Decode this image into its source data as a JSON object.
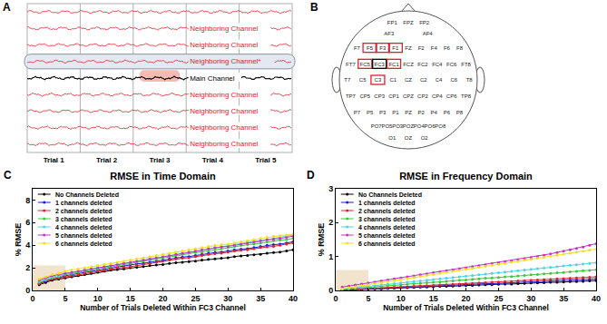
{
  "panel_a": {
    "panel": "A",
    "trials": [
      "Trial 1",
      "Trial 2",
      "Trial 3",
      "Trial 4",
      "Trial 5"
    ],
    "channels": [
      {
        "label": "Neighboring Channel",
        "role": "neighbor"
      },
      {
        "label": "Neighboring Channel",
        "role": "neighbor"
      },
      {
        "label": "Neighboring Channel*",
        "role": "neighbor",
        "selected": true
      },
      {
        "label": "Main Channel",
        "role": "main"
      },
      {
        "label": "Neighboring Channel",
        "role": "neighbor"
      },
      {
        "label": "Neighboring Channel",
        "role": "neighbor"
      },
      {
        "label": "Neighboring Channel",
        "role": "neighbor"
      },
      {
        "label": "Neighboring Channel",
        "role": "neighbor"
      }
    ],
    "deleted_trial": "Trial 3"
  },
  "panel_b": {
    "panel": "B",
    "electrodes": [
      [
        "FP1",
        "FPZ",
        "FP2"
      ],
      [
        "AF3",
        "AF4"
      ],
      [
        "F7",
        "F5",
        "F3",
        "F1",
        "FZ",
        "F2",
        "F4",
        "F6",
        "F8"
      ],
      [
        "FT7",
        "FC5",
        "FC3",
        "FC1",
        "FCZ",
        "FC2",
        "FC4",
        "FC6",
        "FT8"
      ],
      [
        "T7",
        "C5",
        "C3",
        "C1",
        "CZ",
        "C2",
        "C4",
        "C6",
        "T8"
      ],
      [
        "TP7",
        "CP5",
        "CP3",
        "CP1",
        "CPZ",
        "CP2",
        "CP4",
        "CP6",
        "TP8"
      ],
      [
        "P7",
        "P5",
        "P3",
        "P1",
        "PZ",
        "P2",
        "P4",
        "P6",
        "P8"
      ],
      [
        "PO7",
        "PO5",
        "PO3",
        "POZ",
        "PO4",
        "PO6",
        "PO8"
      ],
      [
        "O1",
        "OZ",
        "O2"
      ]
    ],
    "main": "FC3",
    "neighbors": [
      "F5",
      "F3",
      "F1",
      "FC5",
      "FC1",
      "C3"
    ]
  },
  "chart_data": [
    {
      "type": "line",
      "panel": "C",
      "title": "RMSE in Time Domain",
      "x_label": "Number of Trials Deleted Within FC3 Channel",
      "y_label": "% RMSE",
      "x": [
        1,
        2,
        3,
        4,
        5,
        6,
        7,
        8,
        9,
        10,
        11,
        12,
        13,
        14,
        15,
        16,
        17,
        18,
        19,
        20,
        21,
        22,
        23,
        24,
        25,
        26,
        27,
        28,
        29,
        30,
        31,
        32,
        33,
        34,
        35,
        36,
        37,
        38,
        39,
        40
      ],
      "xlim": [
        0,
        40
      ],
      "xticks": [
        0,
        5,
        10,
        15,
        20,
        25,
        30,
        35,
        40
      ],
      "ylim": [
        0,
        9
      ],
      "yticks": [
        0,
        2,
        4,
        6,
        8
      ],
      "grid": false,
      "legend": "upper left",
      "marker": "circle",
      "line_style": "solid",
      "highlight": {
        "x": [
          0,
          5
        ],
        "y": [
          0,
          2.2
        ],
        "color": "#f1e3cc"
      },
      "series": [
        {
          "name": "No Channels Deleted",
          "color": "#000000",
          "values": [
            0.5,
            0.7,
            0.9,
            1.0,
            1.1,
            1.2,
            1.3,
            1.4,
            1.5,
            1.6,
            1.7,
            1.8,
            1.85,
            1.9,
            2.0,
            2.05,
            2.1,
            2.2,
            2.25,
            2.3,
            2.4,
            2.45,
            2.5,
            2.55,
            2.6,
            2.7,
            2.75,
            2.8,
            2.85,
            2.9,
            3.0,
            3.05,
            3.1,
            3.15,
            3.2,
            3.3,
            3.35,
            3.4,
            3.5,
            3.6
          ]
        },
        {
          "name": "1 channels deleted",
          "color": "#1a1ad6",
          "values": [
            0.6,
            0.8,
            1.0,
            1.1,
            1.3,
            1.4,
            1.5,
            1.6,
            1.7,
            1.8,
            1.9,
            2.0,
            2.1,
            2.2,
            2.3,
            2.35,
            2.4,
            2.5,
            2.6,
            2.7,
            2.8,
            2.9,
            2.95,
            3.0,
            3.1,
            3.2,
            3.3,
            3.35,
            3.4,
            3.5,
            3.6,
            3.65,
            3.7,
            3.8,
            3.9,
            4.0,
            4.05,
            4.1,
            4.2,
            4.3
          ]
        },
        {
          "name": "2 channels deleted",
          "color": "#e0202a",
          "values": [
            0.6,
            0.9,
            1.0,
            1.1,
            1.2,
            1.3,
            1.4,
            1.5,
            1.6,
            1.7,
            1.8,
            1.9,
            2.0,
            2.05,
            2.1,
            2.2,
            2.3,
            2.4,
            2.5,
            2.6,
            2.7,
            2.8,
            2.85,
            2.9,
            3.0,
            3.1,
            3.2,
            3.25,
            3.3,
            3.4,
            3.5,
            3.55,
            3.6,
            3.7,
            3.8,
            3.85,
            3.9,
            4.0,
            4.1,
            4.2
          ]
        },
        {
          "name": "3 channels deleted",
          "color": "#3cc83c",
          "values": [
            0.7,
            0.9,
            1.1,
            1.2,
            1.4,
            1.5,
            1.6,
            1.7,
            1.8,
            1.9,
            2.0,
            2.1,
            2.2,
            2.3,
            2.4,
            2.5,
            2.6,
            2.7,
            2.8,
            2.9,
            3.0,
            3.1,
            3.2,
            3.3,
            3.35,
            3.4,
            3.5,
            3.6,
            3.7,
            3.8,
            3.9,
            4.0,
            4.05,
            4.1,
            4.2,
            4.3,
            4.4,
            4.45,
            4.5,
            4.6
          ]
        },
        {
          "name": "4 channels deleted",
          "color": "#4fd3e6",
          "values": [
            0.8,
            1.0,
            1.2,
            1.3,
            1.5,
            1.6,
            1.7,
            1.8,
            1.9,
            2.0,
            2.1,
            2.2,
            2.3,
            2.4,
            2.5,
            2.6,
            2.7,
            2.8,
            2.9,
            3.0,
            3.1,
            3.2,
            3.3,
            3.4,
            3.5,
            3.6,
            3.7,
            3.8,
            3.9,
            4.0,
            4.1,
            4.2,
            4.3,
            4.35,
            4.4,
            4.5,
            4.6,
            4.7,
            4.8,
            4.9
          ]
        },
        {
          "name": "5 channels deleted",
          "color": "#c433c4",
          "values": [
            0.9,
            1.1,
            1.3,
            1.4,
            1.5,
            1.6,
            1.7,
            1.8,
            1.9,
            2.0,
            2.1,
            2.2,
            2.3,
            2.4,
            2.5,
            2.6,
            2.7,
            2.8,
            2.9,
            3.0,
            3.1,
            3.2,
            3.3,
            3.4,
            3.5,
            3.6,
            3.7,
            3.8,
            3.85,
            3.9,
            4.0,
            4.1,
            4.2,
            4.3,
            4.4,
            4.5,
            4.55,
            4.6,
            4.7,
            4.8
          ]
        },
        {
          "name": "6 channels deleted",
          "color": "#f2e01c",
          "values": [
            1.0,
            1.2,
            1.4,
            1.5,
            1.7,
            1.8,
            1.9,
            2.0,
            2.1,
            2.2,
            2.3,
            2.4,
            2.5,
            2.6,
            2.7,
            2.8,
            2.9,
            3.0,
            3.1,
            3.2,
            3.3,
            3.4,
            3.5,
            3.6,
            3.7,
            3.8,
            3.9,
            4.0,
            4.05,
            4.1,
            4.2,
            4.3,
            4.4,
            4.5,
            4.6,
            4.7,
            4.8,
            4.85,
            4.9,
            5.0
          ]
        }
      ]
    },
    {
      "type": "line",
      "panel": "D",
      "title": "RMSE in Frequency Domain",
      "x_label": "Number of Trials Deleted Within FC3 Channel",
      "y_label": "% RMSE",
      "x": [
        1,
        2,
        3,
        4,
        5,
        6,
        7,
        8,
        9,
        10,
        11,
        12,
        13,
        14,
        15,
        16,
        17,
        18,
        19,
        20,
        21,
        22,
        23,
        24,
        25,
        26,
        27,
        28,
        29,
        30,
        31,
        32,
        33,
        34,
        35,
        36,
        37,
        38,
        39,
        40
      ],
      "xlim": [
        0,
        40
      ],
      "xticks": [
        0,
        5,
        10,
        15,
        20,
        25,
        30,
        35,
        40
      ],
      "ylim": [
        0,
        3
      ],
      "yticks": [
        0,
        1,
        2,
        3
      ],
      "grid": false,
      "legend": "upper left",
      "marker": "circle",
      "line_style": "solid",
      "highlight": {
        "x": [
          0,
          5
        ],
        "y": [
          0,
          0.6
        ],
        "color": "#f1e3cc"
      },
      "series": [
        {
          "name": "No Channels Deleted",
          "color": "#000000",
          "values": [
            0.01,
            0.02,
            0.03,
            0.03,
            0.04,
            0.05,
            0.05,
            0.06,
            0.07,
            0.08,
            0.08,
            0.09,
            0.1,
            0.1,
            0.11,
            0.12,
            0.12,
            0.13,
            0.14,
            0.15,
            0.15,
            0.16,
            0.17,
            0.17,
            0.18,
            0.19,
            0.19,
            0.2,
            0.21,
            0.22,
            0.22,
            0.23,
            0.24,
            0.24,
            0.25,
            0.26,
            0.26,
            0.27,
            0.28,
            0.29
          ]
        },
        {
          "name": "1 channels deleted",
          "color": "#1a1ad6",
          "values": [
            0.01,
            0.02,
            0.03,
            0.04,
            0.05,
            0.05,
            0.06,
            0.07,
            0.08,
            0.09,
            0.1,
            0.1,
            0.11,
            0.12,
            0.13,
            0.14,
            0.15,
            0.15,
            0.16,
            0.17,
            0.18,
            0.19,
            0.2,
            0.2,
            0.21,
            0.22,
            0.23,
            0.24,
            0.25,
            0.25,
            0.26,
            0.27,
            0.28,
            0.29,
            0.3,
            0.3,
            0.31,
            0.32,
            0.33,
            0.34
          ]
        },
        {
          "name": "2 channels deleted",
          "color": "#e0202a",
          "values": [
            0.02,
            0.03,
            0.04,
            0.05,
            0.06,
            0.07,
            0.08,
            0.09,
            0.1,
            0.1,
            0.11,
            0.12,
            0.13,
            0.14,
            0.15,
            0.16,
            0.17,
            0.18,
            0.19,
            0.2,
            0.21,
            0.22,
            0.23,
            0.24,
            0.25,
            0.26,
            0.27,
            0.28,
            0.29,
            0.3,
            0.31,
            0.32,
            0.33,
            0.34,
            0.35,
            0.36,
            0.37,
            0.38,
            0.39,
            0.4
          ]
        },
        {
          "name": "3 channels deleted",
          "color": "#3cc83c",
          "values": [
            0.03,
            0.05,
            0.06,
            0.08,
            0.09,
            0.11,
            0.12,
            0.14,
            0.15,
            0.17,
            0.18,
            0.2,
            0.21,
            0.23,
            0.24,
            0.25,
            0.27,
            0.28,
            0.3,
            0.31,
            0.33,
            0.34,
            0.36,
            0.37,
            0.38,
            0.4,
            0.41,
            0.43,
            0.44,
            0.46,
            0.47,
            0.49,
            0.5,
            0.52,
            0.53,
            0.55,
            0.56,
            0.58,
            0.59,
            0.61
          ]
        },
        {
          "name": "4 channels deleted",
          "color": "#4fd3e6",
          "values": [
            0.04,
            0.06,
            0.08,
            0.1,
            0.12,
            0.14,
            0.16,
            0.18,
            0.2,
            0.22,
            0.24,
            0.26,
            0.28,
            0.3,
            0.32,
            0.34,
            0.36,
            0.38,
            0.4,
            0.42,
            0.44,
            0.46,
            0.48,
            0.5,
            0.52,
            0.54,
            0.56,
            0.58,
            0.6,
            0.62,
            0.64,
            0.66,
            0.68,
            0.7,
            0.72,
            0.74,
            0.76,
            0.78,
            0.8,
            0.82
          ]
        },
        {
          "name": "5 channels deleted",
          "color": "#c433c4",
          "values": [
            0.1,
            0.13,
            0.16,
            0.19,
            0.22,
            0.25,
            0.28,
            0.31,
            0.34,
            0.37,
            0.4,
            0.43,
            0.46,
            0.49,
            0.52,
            0.55,
            0.58,
            0.61,
            0.64,
            0.67,
            0.7,
            0.73,
            0.76,
            0.79,
            0.82,
            0.85,
            0.88,
            0.91,
            0.94,
            0.97,
            1.0,
            1.04,
            1.08,
            1.12,
            1.16,
            1.2,
            1.24,
            1.28,
            1.33,
            1.38
          ]
        },
        {
          "name": "6 channels deleted",
          "color": "#f2e01c",
          "values": [
            0.05,
            0.08,
            0.11,
            0.14,
            0.17,
            0.2,
            0.23,
            0.26,
            0.29,
            0.32,
            0.35,
            0.38,
            0.41,
            0.44,
            0.47,
            0.5,
            0.53,
            0.56,
            0.59,
            0.62,
            0.65,
            0.68,
            0.71,
            0.74,
            0.77,
            0.8,
            0.83,
            0.86,
            0.89,
            0.92,
            0.95,
            0.98,
            1.01,
            1.04,
            1.07,
            1.1,
            1.13,
            1.16,
            1.19,
            1.22
          ]
        }
      ]
    }
  ]
}
